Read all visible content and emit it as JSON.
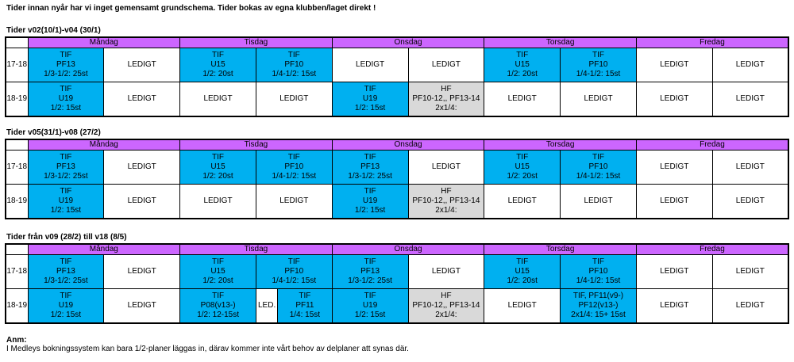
{
  "intro": "Tider innan nyår har vi inget gemensamt grundschema. Tider bokas av egna klubben/laget direkt !",
  "days": [
    "Måndag",
    "Tisdag",
    "Onsdag",
    "Torsdag",
    "Fredag"
  ],
  "free": "LEDIGT",
  "sections": [
    {
      "title": "Tider v02(10/1)-v04 (30/1)",
      "rows": [
        {
          "time": "17-18",
          "cells": [
            {
              "c": "blue",
              "lines": [
                "TIF",
                "PF13",
                "1/3-1/2: 25st"
              ]
            },
            {
              "c": "white",
              "lines": [
                "LEDIGT"
              ]
            },
            {
              "c": "blue",
              "lines": [
                "TIF",
                "U15",
                "1/2: 20st"
              ]
            },
            {
              "c": "blue",
              "lines": [
                "TIF",
                "PF10",
                "1/4-1/2: 15st"
              ]
            },
            {
              "c": "white",
              "lines": [
                "LEDIGT"
              ]
            },
            {
              "c": "white",
              "lines": [
                "LEDIGT"
              ]
            },
            {
              "c": "blue",
              "lines": [
                "TIF",
                "U15",
                "1/2: 20st"
              ]
            },
            {
              "c": "blue",
              "lines": [
                "TIF",
                "PF10",
                "1/4-1/2: 15st"
              ]
            },
            {
              "c": "white",
              "lines": [
                "LEDIGT"
              ]
            },
            {
              "c": "white",
              "lines": [
                "LEDIGT"
              ]
            }
          ]
        },
        {
          "time": "18-19",
          "cells": [
            {
              "c": "blue",
              "lines": [
                "TIF",
                "U19",
                "1/2: 15st"
              ]
            },
            {
              "c": "white",
              "lines": [
                "LEDIGT"
              ]
            },
            {
              "c": "white",
              "lines": [
                "LEDIGT"
              ]
            },
            {
              "c": "white",
              "lines": [
                "LEDIGT"
              ]
            },
            {
              "c": "blue",
              "lines": [
                "TIF",
                "U19",
                "1/2: 15st"
              ]
            },
            {
              "c": "gray",
              "lines": [
                "HF",
                "PF10-12,, PF13-14",
                "2x1/4:"
              ]
            },
            {
              "c": "white",
              "lines": [
                "LEDIGT"
              ]
            },
            {
              "c": "white",
              "lines": [
                "LEDIGT"
              ]
            },
            {
              "c": "white",
              "lines": [
                "LEDIGT"
              ]
            },
            {
              "c": "white",
              "lines": [
                "LEDIGT"
              ]
            }
          ]
        }
      ]
    },
    {
      "title": "Tider v05(31/1)-v08 (27/2)",
      "rows": [
        {
          "time": "17-18",
          "cells": [
            {
              "c": "blue",
              "lines": [
                "TIF",
                "PF13",
                "1/3-1/2: 25st"
              ]
            },
            {
              "c": "white",
              "lines": [
                "LEDIGT"
              ]
            },
            {
              "c": "blue",
              "lines": [
                "TIF",
                "U15",
                "1/2: 20st"
              ]
            },
            {
              "c": "blue",
              "lines": [
                "TIF",
                "PF10",
                "1/4-1/2: 15st"
              ]
            },
            {
              "c": "blue",
              "lines": [
                "TIF",
                "PF13",
                "1/3-1/2: 25st"
              ]
            },
            {
              "c": "white",
              "lines": [
                "LEDIGT"
              ]
            },
            {
              "c": "blue",
              "lines": [
                "TIF",
                "U15",
                "1/2: 20st"
              ]
            },
            {
              "c": "blue",
              "lines": [
                "TIF",
                "PF10",
                "1/4-1/2: 15st"
              ]
            },
            {
              "c": "white",
              "lines": [
                "LEDIGT"
              ]
            },
            {
              "c": "white",
              "lines": [
                "LEDIGT"
              ]
            }
          ]
        },
        {
          "time": "18-19",
          "cells": [
            {
              "c": "blue",
              "lines": [
                "TIF",
                "U19",
                "1/2: 15st"
              ]
            },
            {
              "c": "white",
              "lines": [
                "LEDIGT"
              ]
            },
            {
              "c": "white",
              "lines": [
                "LEDIGT"
              ]
            },
            {
              "c": "white",
              "lines": [
                "LEDIGT"
              ]
            },
            {
              "c": "blue",
              "lines": [
                "TIF",
                "U19",
                "1/2: 15st"
              ]
            },
            {
              "c": "gray",
              "lines": [
                "HF",
                "PF10-12,, PF13-14",
                "2x1/4:"
              ]
            },
            {
              "c": "white",
              "lines": [
                "LEDIGT"
              ]
            },
            {
              "c": "white",
              "lines": [
                "LEDIGT"
              ]
            },
            {
              "c": "white",
              "lines": [
                "LEDIGT"
              ]
            },
            {
              "c": "white",
              "lines": [
                "LEDIGT"
              ]
            }
          ]
        }
      ]
    },
    {
      "title": "Tider från v09 (28/2) till v18 (8/5)",
      "rows": [
        {
          "time": "17-18",
          "cells": [
            {
              "c": "blue",
              "lines": [
                "TIF",
                "PF13",
                "1/3-1/2: 25st"
              ]
            },
            {
              "c": "white",
              "lines": [
                "LEDIGT"
              ]
            },
            {
              "c": "blue",
              "lines": [
                "TIF",
                "U15",
                "1/2: 20st"
              ]
            },
            {
              "c": "blue",
              "lines": [
                "TIF",
                "PF10",
                "1/4-1/2: 15st"
              ]
            },
            {
              "c": "blue",
              "lines": [
                "TIF",
                "PF13",
                "1/3-1/2: 25st"
              ]
            },
            {
              "c": "white",
              "lines": [
                "LEDIGT"
              ]
            },
            {
              "c": "blue",
              "lines": [
                "TIF",
                "U15",
                "1/2: 20st"
              ]
            },
            {
              "c": "blue",
              "lines": [
                "TIF",
                "PF10",
                "1/4-1/2: 15st"
              ]
            },
            {
              "c": "white",
              "lines": [
                "LEDIGT"
              ]
            },
            {
              "c": "white",
              "lines": [
                "LEDIGT"
              ]
            }
          ]
        },
        {
          "time": "18-19",
          "cells": [
            {
              "c": "blue",
              "lines": [
                "TIF",
                "U19",
                "1/2: 15st"
              ]
            },
            {
              "c": "white",
              "lines": [
                "LEDIGT"
              ]
            },
            {
              "c": "blue",
              "lines": [
                "TIF",
                "P08(v13-)",
                "1/2: 12-15st"
              ]
            },
            {
              "c": "white",
              "lines": [
                "LED."
              ]
            },
            {
              "c": "blue",
              "lines": [
                "TIF",
                "PF11",
                "1/4: 15st"
              ]
            },
            {
              "c": "blue",
              "lines": [
                "TIF",
                "U19",
                "1/2: 15st"
              ]
            },
            {
              "c": "gray",
              "lines": [
                "HF",
                "PF10-12,, PF13-14",
                "2x1/4:"
              ]
            },
            {
              "c": "white",
              "lines": [
                "LEDIGT"
              ]
            },
            {
              "c": "blue",
              "lines": [
                "TIF, PF11(v9-)",
                "PF12(v13-)",
                "2x1/4: 15+ 15st"
              ]
            },
            {
              "c": "white",
              "lines": [
                "LEDIGT"
              ]
            },
            {
              "c": "white",
              "lines": [
                "LEDIGT"
              ]
            }
          ]
        }
      ]
    }
  ],
  "note": {
    "label": "Anm:",
    "text": "I Medleys bokningssystem kan bara 1/2-planer läggas in, därav kommer inte vårt behov av delplaner att synas där."
  }
}
